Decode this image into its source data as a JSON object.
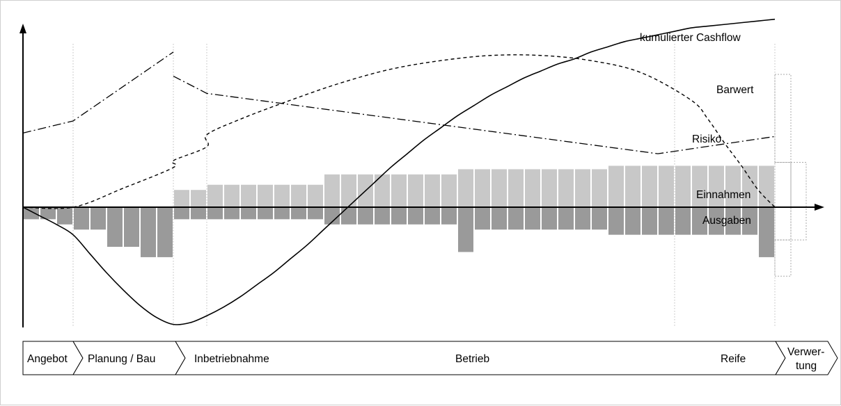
{
  "chart_data": {
    "type": "bar",
    "title": "",
    "xlabel": "",
    "ylabel": "",
    "ylim": [
      -7,
      10
    ],
    "periods": 45,
    "series": [
      {
        "name": "Einnahmen",
        "color": "#c8c8c8",
        "values": [
          0,
          0,
          0,
          0,
          0,
          0,
          0,
          0,
          0,
          1,
          1,
          1.3,
          1.3,
          1.3,
          1.3,
          1.3,
          1.3,
          1.3,
          1.9,
          1.9,
          1.9,
          1.9,
          1.9,
          1.9,
          1.9,
          1.9,
          2.2,
          2.2,
          2.2,
          2.2,
          2.2,
          2.2,
          2.2,
          2.2,
          2.2,
          2.4,
          2.4,
          2.4,
          2.4,
          2.4,
          2.4,
          2.4,
          2.4,
          2.4,
          2.4
        ]
      },
      {
        "name": "Ausgaben",
        "color": "#9a9a9a",
        "values": [
          -0.7,
          -0.7,
          -1,
          -1.3,
          -1.3,
          -2.3,
          -2.3,
          -2.9,
          -2.9,
          -0.7,
          -0.7,
          -0.7,
          -0.7,
          -0.7,
          -0.7,
          -0.7,
          -0.7,
          -0.7,
          -1,
          -1,
          -1,
          -1,
          -1,
          -1,
          -1,
          -1,
          -2.6,
          -1.3,
          -1.3,
          -1.3,
          -1.3,
          -1.3,
          -1.3,
          -1.3,
          -1.3,
          -1.6,
          -1.6,
          -1.6,
          -1.6,
          -1.6,
          -1.6,
          -1.6,
          -1.6,
          -1.6,
          -2.9
        ]
      }
    ],
    "verwertung": {
      "einnahmen": 2.6,
      "ausgaben": -1.9,
      "ausgaben_tail": -4
    },
    "curves": {
      "kumulierter_cashflow": {
        "label": "kumulierter Cashflow",
        "t": [
          0,
          1,
          2,
          3,
          4,
          5,
          6,
          7,
          8,
          9,
          10,
          11,
          12,
          13,
          14,
          15,
          16,
          17,
          18,
          19,
          20,
          21,
          22,
          23,
          24,
          25,
          26,
          27,
          28,
          29,
          30,
          31,
          32,
          33,
          34,
          35,
          36,
          37,
          38,
          39,
          40,
          41,
          42,
          43,
          44,
          45
        ],
        "values": [
          0,
          -0.5,
          -1,
          -1.6,
          -2.7,
          -3.8,
          -4.8,
          -5.7,
          -6.4,
          -6.8,
          -6.7,
          -6.3,
          -5.8,
          -5.2,
          -4.5,
          -3.8,
          -3,
          -2.2,
          -1.3,
          -0.4,
          0.5,
          1.4,
          2.3,
          3.1,
          3.9,
          4.6,
          5.3,
          5.9,
          6.5,
          7,
          7.5,
          7.9,
          8.3,
          8.6,
          9,
          9.3,
          9.6,
          9.8,
          10,
          10.2,
          10.4,
          10.5,
          10.6,
          10.7,
          10.8,
          10.9
        ]
      },
      "barwert": {
        "label": "Barwert",
        "t": [
          0,
          3,
          6,
          9,
          9,
          11,
          11,
          13,
          16,
          19,
          22,
          25,
          28,
          31,
          34,
          37,
          40,
          41,
          42,
          43,
          44,
          45
        ],
        "values": [
          0,
          0,
          1.1,
          2.3,
          2.7,
          3.5,
          4.2,
          5.1,
          6.2,
          7.2,
          8,
          8.5,
          8.8,
          8.8,
          8.5,
          7.8,
          6.2,
          5.1,
          3.7,
          2.4,
          1,
          0
        ]
      },
      "risiko": {
        "label": "Risiko",
        "t": [
          0,
          3,
          9,
          9,
          11,
          38,
          45
        ],
        "values": [
          4.3,
          5,
          9,
          7.6,
          6.6,
          3.1,
          4.1
        ]
      }
    },
    "phases": [
      "Angebot",
      "Planung / Bau",
      "Inbetriebnahme",
      "Betrieb",
      "Reife",
      "Verwer-\ntung"
    ],
    "phase_boundaries_t": [
      3,
      9,
      11,
      39,
      45
    ]
  },
  "colors": {
    "einnahmen": "#c8c8c8",
    "ausgaben": "#9a9a9a",
    "guide": "#bdbdbd",
    "ghost": "#a8a8a8"
  },
  "labels": {
    "cashflow": "kumulierter Cashflow",
    "barwert": "Barwert",
    "risiko": "Risiko",
    "einnahmen": "Einnahmen",
    "ausgaben": "Ausgaben"
  },
  "phase_bar": {
    "angebot": "Angebot",
    "planung": "Planung / Bau",
    "inbetriebnahme": "Inbetriebnahme",
    "betrieb": "Betrieb",
    "reife": "Reife",
    "verwertung_1": "Verwer-",
    "verwertung_2": "tung"
  }
}
